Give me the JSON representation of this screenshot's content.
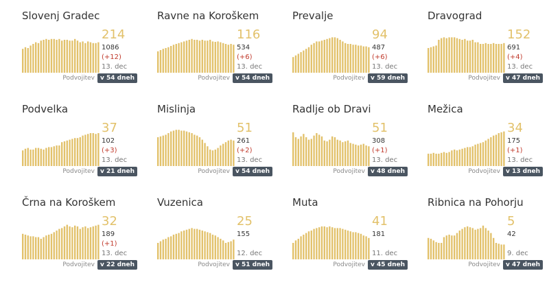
{
  "colors": {
    "bar": "#e2c16a",
    "accent": "#e2c16a",
    "delta": "#c0392b",
    "badge_bg": "#4a5561"
  },
  "chart_data": [
    {
      "type": "bar",
      "name": "Slovenj Gradec",
      "current": "214",
      "total": "1086",
      "delta": "(+12)",
      "date": "13. dec",
      "footer_label": "Podvojitev",
      "doubling": "v 54 dneh",
      "values": [
        58,
        62,
        60,
        66,
        70,
        74,
        72,
        78,
        80,
        82,
        80,
        82,
        82,
        80,
        82,
        78,
        80,
        80,
        78,
        78,
        82,
        78,
        74,
        76,
        72,
        76,
        74,
        72,
        72,
        74
      ]
    },
    {
      "type": "bar",
      "name": "Ravne na Koroškem",
      "current": "116",
      "total": "534",
      "delta": "(+6)",
      "date": "13. dec",
      "footer_label": "Podvojitev",
      "doubling": "v 54 dneh",
      "values": [
        52,
        55,
        58,
        60,
        62,
        65,
        68,
        70,
        72,
        74,
        76,
        78,
        80,
        82,
        80,
        80,
        78,
        80,
        78,
        78,
        80,
        76,
        75,
        76,
        74,
        72,
        70,
        68,
        70,
        68
      ]
    },
    {
      "type": "bar",
      "name": "Prevalje",
      "current": "94",
      "total": "487",
      "delta": "(+6)",
      "date": "13. dec",
      "footer_label": "Podvojitev",
      "doubling": "v 59 dneh",
      "values": [
        38,
        42,
        46,
        50,
        54,
        58,
        62,
        68,
        72,
        76,
        76,
        78,
        80,
        82,
        84,
        86,
        86,
        84,
        80,
        76,
        72,
        70,
        70,
        68,
        68,
        66,
        66,
        64,
        64,
        62
      ]
    },
    {
      "type": "bar",
      "name": "Dravograd",
      "current": "152",
      "total": "691",
      "delta": "(+4)",
      "date": "13. dec",
      "footer_label": "Podvojitev",
      "doubling": "v 47 dneh",
      "values": [
        60,
        62,
        64,
        66,
        80,
        84,
        86,
        84,
        86,
        86,
        86,
        84,
        82,
        80,
        82,
        78,
        78,
        80,
        74,
        74,
        70,
        70,
        72,
        70,
        70,
        72,
        70,
        70,
        70,
        72
      ]
    },
    {
      "type": "bar",
      "name": "Podvelka",
      "current": "37",
      "total": "102",
      "delta": "(+3)",
      "date": "13. dec",
      "footer_label": "Podvojitev",
      "doubling": "v 21 dneh",
      "values": [
        38,
        42,
        44,
        40,
        40,
        44,
        44,
        42,
        40,
        44,
        46,
        46,
        48,
        50,
        50,
        58,
        60,
        62,
        64,
        66,
        68,
        68,
        70,
        74,
        76,
        78,
        80,
        80,
        78,
        80
      ]
    },
    {
      "type": "bar",
      "name": "Mislinja",
      "current": "51",
      "total": "261",
      "delta": "(+2)",
      "date": "13. dec",
      "footer_label": "Podvojitev",
      "doubling": "v 54 dneh",
      "values": [
        70,
        72,
        74,
        76,
        80,
        84,
        86,
        88,
        88,
        86,
        86,
        84,
        82,
        80,
        76,
        74,
        70,
        64,
        56,
        48,
        40,
        38,
        40,
        44,
        50,
        54,
        58,
        62,
        64,
        62
      ]
    },
    {
      "type": "bar",
      "name": "Radlje ob Dravi",
      "current": "51",
      "total": "308",
      "delta": "(+1)",
      "date": "13. dec",
      "footer_label": "Podvojitev",
      "doubling": "v 48 dneh",
      "values": [
        82,
        70,
        66,
        72,
        78,
        70,
        64,
        66,
        74,
        80,
        76,
        72,
        62,
        60,
        64,
        72,
        70,
        64,
        62,
        58,
        60,
        62,
        56,
        54,
        52,
        50,
        52,
        54,
        50,
        48
      ]
    },
    {
      "type": "bar",
      "name": "Mežica",
      "current": "34",
      "total": "175",
      "delta": "(+1)",
      "date": "13. dec",
      "footer_label": "Podvojitev",
      "doubling": "v 13 dneh",
      "values": [
        30,
        30,
        32,
        30,
        30,
        32,
        34,
        32,
        34,
        38,
        40,
        38,
        40,
        42,
        44,
        46,
        46,
        48,
        52,
        54,
        56,
        58,
        62,
        66,
        70,
        74,
        76,
        80,
        82,
        84
      ]
    },
    {
      "type": "bar",
      "name": "Črna na Koroškem",
      "current": "32",
      "total": "189",
      "delta": "(+1)",
      "date": "13. dec",
      "footer_label": "Podvojitev",
      "doubling": "v 22 dneh",
      "values": [
        62,
        60,
        58,
        56,
        56,
        54,
        54,
        50,
        54,
        58,
        60,
        62,
        66,
        70,
        74,
        76,
        80,
        84,
        80,
        78,
        82,
        80,
        74,
        78,
        80,
        76,
        78,
        80,
        82,
        84
      ]
    },
    {
      "type": "bar",
      "name": "Vuzenica",
      "current": "25",
      "total": "155",
      "delta": "",
      "date": "12. dec",
      "footer_label": "Podvojitev",
      "doubling": "v 51 dneh",
      "values": [
        40,
        44,
        48,
        50,
        54,
        56,
        60,
        62,
        64,
        68,
        70,
        72,
        74,
        76,
        74,
        74,
        72,
        70,
        68,
        66,
        64,
        60,
        58,
        54,
        50,
        46,
        40,
        42,
        44,
        48
      ]
    },
    {
      "type": "bar",
      "name": "Muta",
      "current": "41",
      "total": "181",
      "delta": "",
      "date": "11. dec",
      "footer_label": "Podvojitev",
      "doubling": "v 45 dneh",
      "values": [
        40,
        46,
        50,
        56,
        60,
        64,
        68,
        70,
        74,
        76,
        78,
        80,
        80,
        78,
        80,
        78,
        76,
        76,
        76,
        74,
        72,
        70,
        68,
        66,
        66,
        64,
        62,
        58,
        56,
        52
      ]
    },
    {
      "type": "bar",
      "name": "Ribnica na Pohorju",
      "current": "5",
      "total": "42",
      "delta": "",
      "date": "9. dec",
      "footer_label": "Podvojitev",
      "doubling": "v 47 dneh",
      "values": [
        52,
        50,
        46,
        42,
        40,
        40,
        54,
        58,
        60,
        58,
        58,
        64,
        70,
        74,
        78,
        80,
        78,
        76,
        72,
        74,
        76,
        82,
        76,
        70,
        64,
        52,
        40,
        38,
        36,
        36
      ]
    }
  ]
}
